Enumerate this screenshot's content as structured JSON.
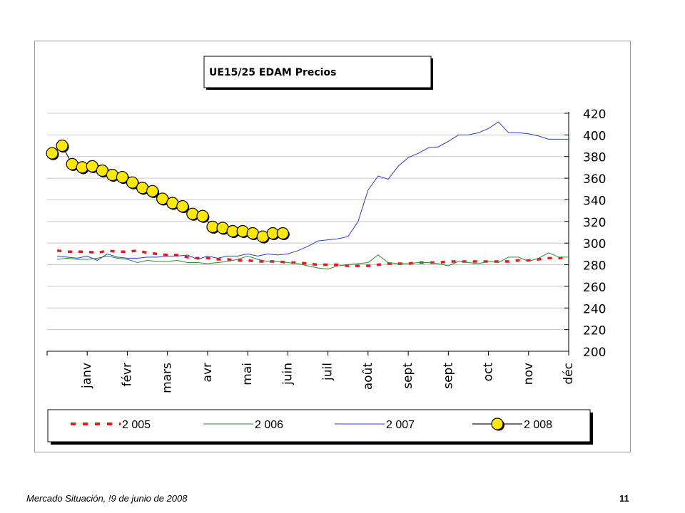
{
  "footer": {
    "text": "Mercado Situación, !9 de junio de 2008",
    "page_number": "11"
  },
  "chart_data": {
    "type": "line",
    "title": "UE15/25 EDAM Precios",
    "xlabel": "",
    "ylabel": "",
    "ylim": [
      200,
      420
    ],
    "yticks": [
      200,
      220,
      240,
      260,
      280,
      300,
      320,
      340,
      360,
      380,
      400,
      420
    ],
    "ytick_labels": [
      "200",
      "220",
      "240",
      "260",
      "280",
      "300",
      "320",
      "340",
      "360",
      "380",
      "400",
      "420"
    ],
    "y_axis_side": "right",
    "grid": true,
    "legend_position": "bottom",
    "categories": [
      "janv",
      "févr",
      "mars",
      "avr",
      "mai",
      "juin",
      "juil",
      "août",
      "sept",
      "sept",
      "oct",
      "nov",
      "déc"
    ],
    "x_range": [
      0,
      52
    ],
    "series": [
      {
        "name": "2 005",
        "style": "dashed",
        "color": "#e8191a",
        "x": [
          1,
          2,
          3,
          4,
          5,
          6,
          7,
          8,
          9,
          10,
          11,
          12,
          13,
          14,
          15,
          16,
          17,
          18,
          19,
          20,
          21,
          22,
          23,
          24,
          25,
          26,
          27,
          28,
          29,
          30,
          31,
          32,
          33,
          34,
          35,
          36,
          37,
          38,
          39,
          40,
          41,
          42,
          43,
          44,
          45,
          46,
          47,
          48,
          49,
          50,
          51,
          52
        ],
        "values": [
          293,
          292,
          292,
          292,
          291,
          293,
          292,
          292,
          293,
          291,
          290,
          289,
          289,
          287,
          286,
          286,
          285,
          285,
          284,
          284,
          283,
          283,
          283,
          282,
          282,
          281,
          280,
          280,
          280,
          279,
          279,
          279,
          280,
          281,
          281,
          281,
          282,
          282,
          282,
          283,
          283,
          283,
          283,
          283,
          283,
          283,
          284,
          284,
          285,
          286,
          286,
          287
        ]
      },
      {
        "name": "2 006",
        "style": "solid",
        "color": "#2e8b2e",
        "x": [
          1,
          2,
          3,
          4,
          5,
          6,
          7,
          8,
          9,
          10,
          11,
          12,
          13,
          14,
          15,
          16,
          17,
          18,
          19,
          20,
          21,
          22,
          23,
          24,
          25,
          26,
          27,
          28,
          29,
          30,
          31,
          32,
          33,
          34,
          35,
          36,
          37,
          38,
          39,
          40,
          41,
          42,
          43,
          44,
          45,
          46,
          47,
          48,
          49,
          50,
          51,
          52
        ],
        "values": [
          285,
          286,
          285,
          285,
          286,
          288,
          286,
          285,
          282,
          284,
          283,
          283,
          284,
          282,
          282,
          281,
          282,
          283,
          285,
          288,
          285,
          283,
          283,
          282,
          281,
          279,
          277,
          276,
          279,
          280,
          281,
          282,
          289,
          282,
          281,
          281,
          282,
          282,
          281,
          279,
          283,
          282,
          281,
          283,
          282,
          287,
          287,
          283,
          286,
          291,
          287,
          287
        ]
      },
      {
        "name": "2 007",
        "style": "solid",
        "color": "#2b3bd8",
        "x": [
          1,
          2,
          3,
          4,
          5,
          6,
          7,
          8,
          9,
          10,
          11,
          12,
          13,
          14,
          15,
          16,
          17,
          18,
          19,
          20,
          21,
          22,
          23,
          24,
          25,
          26,
          27,
          28,
          29,
          30,
          31,
          32,
          33,
          34,
          35,
          36,
          37,
          38,
          39,
          40,
          41,
          42,
          43,
          44,
          45,
          46,
          47,
          48,
          49,
          50,
          51,
          52
        ],
        "values": [
          288,
          287,
          286,
          288,
          284,
          290,
          287,
          286,
          286,
          287,
          287,
          288,
          288,
          289,
          285,
          288,
          286,
          288,
          288,
          290,
          288,
          290,
          289,
          290,
          293,
          297,
          302,
          303,
          304,
          306,
          320,
          349,
          362,
          359,
          371,
          379,
          383,
          388,
          389,
          394,
          400,
          400,
          402,
          406,
          412,
          402,
          402,
          401,
          399,
          396,
          396,
          396
        ]
      },
      {
        "name": "2 008",
        "style": "markers",
        "color": "#1a1a1a",
        "marker_color": "#ffe900",
        "x": [
          0.5,
          1.5,
          2.5,
          3.5,
          4.5,
          5.5,
          6.5,
          7.5,
          8.5,
          9.5,
          10.5,
          11.5,
          12.5,
          13.5,
          14.5,
          15.5,
          16.5,
          17.5,
          18.5,
          19.5,
          20.5,
          21.5,
          22.5,
          23.5
        ],
        "values": [
          383,
          390,
          373,
          370,
          371,
          367,
          363,
          361,
          356,
          351,
          348,
          341,
          337,
          334,
          327,
          325,
          315,
          314,
          311,
          311,
          309,
          306,
          309,
          309
        ]
      }
    ]
  }
}
